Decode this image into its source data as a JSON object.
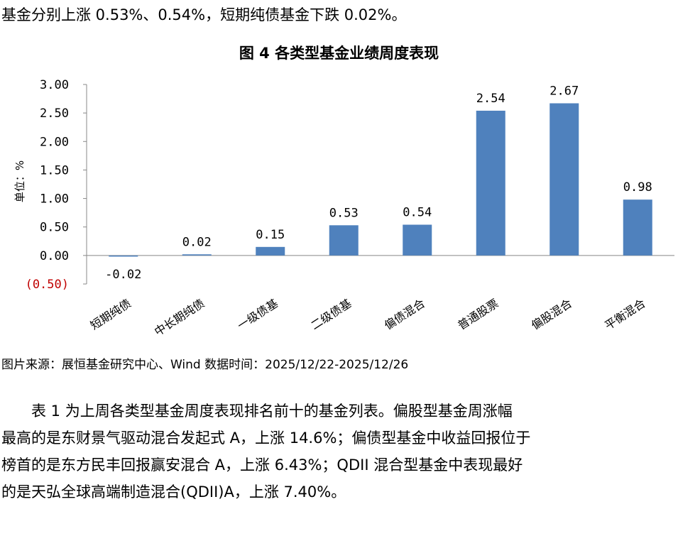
{
  "intro_text": "基金分别上涨 0.53%、0.54%，短期纯债基金下跌 0.02%。",
  "chart_title": "图 4 各类型基金业绩周度表现",
  "source_note": "图片来源：展恒基金研究中心、Wind  数据时间：2025/12/22-2025/12/26",
  "paragraph_lines": [
    "表 1 为上周各类型基金周度表现排名前十的基金列表。偏股型基金周涨幅",
    "最高的是东财景气驱动混合发起式 A，上涨 14.6%；偏债型基金中收益回报位于",
    "榜首的是东方民丰回报赢安混合 A，上涨 6.43%；QDII 混合型基金中表现最好",
    "的是天弘全球高端制造混合(QDII)A，上涨 7.40%。"
  ],
  "chart_data": {
    "type": "bar",
    "title": "图 4 各类型基金业绩周度表现",
    "ylabel": "单位：%",
    "xlabel": "",
    "categories": [
      "短期纯债",
      "中长期纯债",
      "一级债基",
      "二级债基",
      "偏债混合",
      "普通股票",
      "偏股混合",
      "平衡混合"
    ],
    "values": [
      -0.02,
      0.02,
      0.15,
      0.53,
      0.54,
      2.54,
      2.67,
      0.98
    ],
    "value_labels": [
      "-0.02",
      "0.02",
      "0.15",
      "0.53",
      "0.54",
      "2.54",
      "2.67",
      "0.98"
    ],
    "ylim": [
      -0.5,
      3.0
    ],
    "yticks": [
      3.0,
      2.5,
      2.0,
      1.5,
      1.0,
      0.5,
      0.0,
      -0.5
    ],
    "ytick_labels": [
      "3.00",
      "2.50",
      "2.00",
      "1.50",
      "1.00",
      "0.50",
      "0.00",
      "(0.50)"
    ],
    "bar_color": "#4F81BD",
    "negative_tick_color": "#C00000",
    "grid": false,
    "legend": "none"
  }
}
